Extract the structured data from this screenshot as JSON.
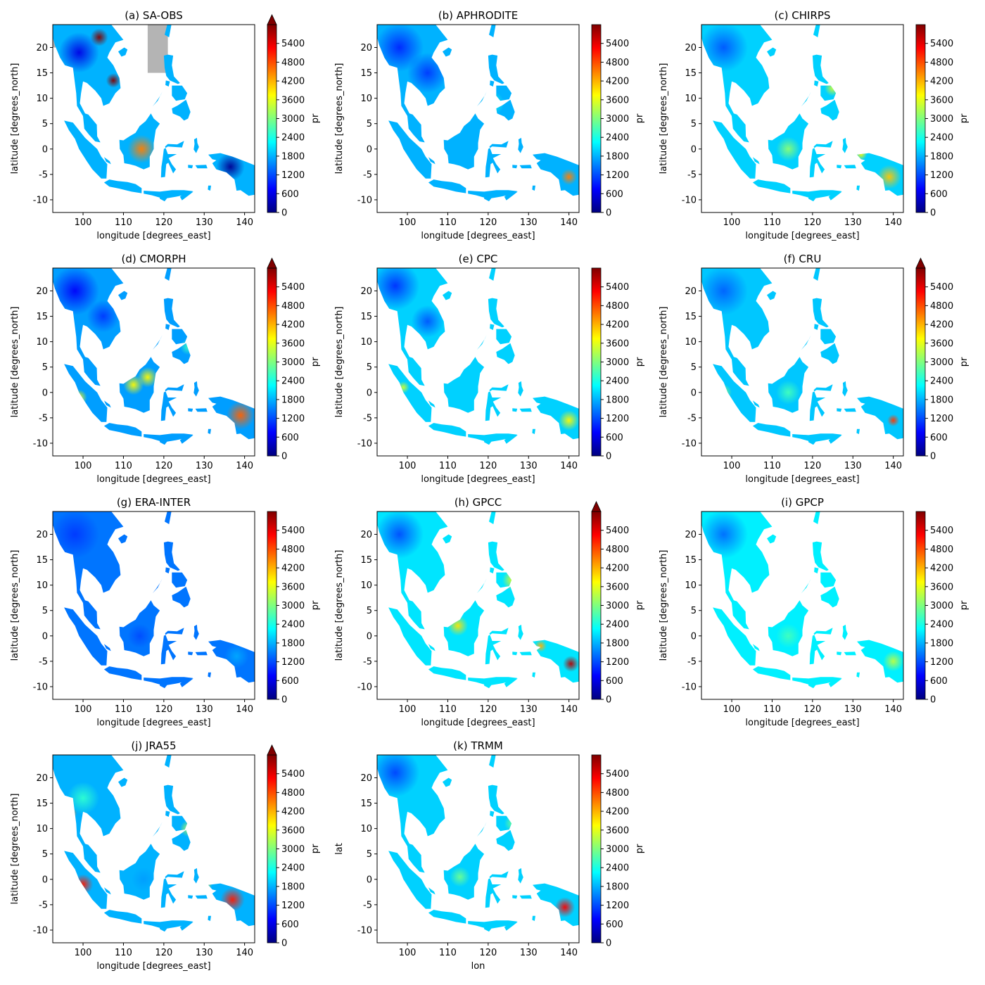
{
  "figure": {
    "colorbar_label": "pr",
    "colorbar_ticks": [
      "0",
      "600",
      "1200",
      "1800",
      "2400",
      "3000",
      "3600",
      "4200",
      "4800",
      "5400"
    ],
    "colorbar_range": [
      0,
      6000
    ],
    "colormap": [
      "#00007f",
      "#0000ff",
      "#007fff",
      "#00ffff",
      "#7fff7f",
      "#ffff00",
      "#ff7f00",
      "#ff0000",
      "#7f0000"
    ],
    "land_color": "#ffffff",
    "missing_color": "#b4b4b4",
    "x_ticks": [
      "100",
      "110",
      "120",
      "130",
      "140"
    ],
    "x_range": [
      92.5,
      142.5
    ],
    "y_ticks": [
      "20",
      "15",
      "10",
      "5",
      "0",
      "-5",
      "-10"
    ],
    "y_range": [
      -12.5,
      24.5
    ]
  },
  "panels": [
    {
      "title": "(a) SA-OBS",
      "xlabel": "longitude [degrees_east]",
      "ylabel": "latitude [degrees_north]",
      "extend_max": true
    },
    {
      "title": "(b) APHRODITE",
      "xlabel": "longitude [degrees_east]",
      "ylabel": "latitude [degrees_north]",
      "extend_max": false
    },
    {
      "title": "(c) CHIRPS",
      "xlabel": "longitude [degrees_east]",
      "ylabel": "latitude [degrees_north]",
      "extend_max": false
    },
    {
      "title": "(d) CMORPH",
      "xlabel": "longitude [degrees_east]",
      "ylabel": "latitude [degrees_north]",
      "extend_max": true
    },
    {
      "title": "(e) CPC",
      "xlabel": "longitude [degrees_east]",
      "ylabel": "latitude [degrees_north]",
      "extend_max": false
    },
    {
      "title": "(f) CRU",
      "xlabel": "longitude [degrees_east]",
      "ylabel": "latitude [degrees_north]",
      "extend_max": true
    },
    {
      "title": "(g) ERA-INTER",
      "xlabel": "longitude [degrees_east]",
      "ylabel": "latitude [degrees_north]",
      "extend_max": false
    },
    {
      "title": "(h) GPCC",
      "xlabel": "longitude [degrees_east]",
      "ylabel": "latitude [degrees_north]",
      "extend_max": true
    },
    {
      "title": "(i) GPCP",
      "xlabel": "longitude [degrees_east]",
      "ylabel": "latitude [degrees_north]",
      "extend_max": false
    },
    {
      "title": "(j) JRA55",
      "xlabel": "longitude [degrees_east]",
      "ylabel": "latitude [degrees_north]",
      "extend_max": true
    },
    {
      "title": "(k) TRMM",
      "xlabel": "lon",
      "ylabel": "lat",
      "extend_max": false
    }
  ]
}
